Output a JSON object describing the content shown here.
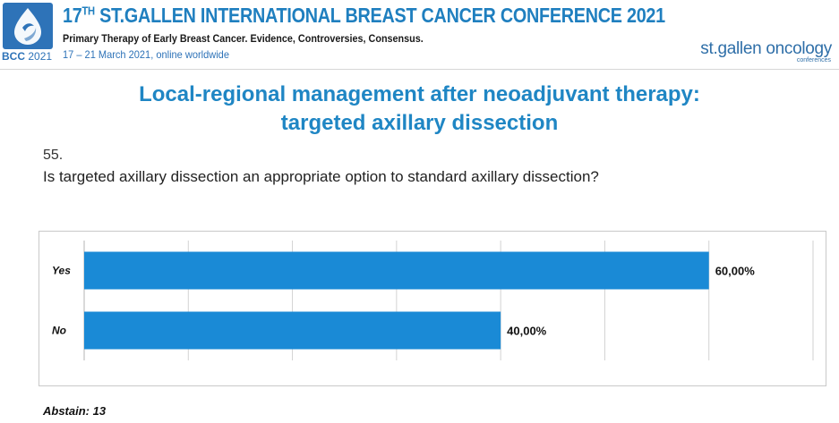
{
  "header": {
    "logo_abbr": "BCC",
    "logo_year": "2021",
    "conference_number": "17",
    "conference_ordinal": "TH",
    "conference_title": "ST.GALLEN INTERNATIONAL BREAST CANCER CONFERENCE 2021",
    "subtitle": "Primary Therapy of Early Breast Cancer. Evidence, Controversies, Consensus.",
    "dates": "17 – 21 March 2021, online worldwide",
    "brand": "st.gallen oncology",
    "brand_sub": "conferences",
    "accent_color": "#1f7fbf"
  },
  "slide": {
    "title_line1": "Local-regional management after neoadjuvant therapy:",
    "title_line2": "targeted axillary dissection",
    "question_number": "55.",
    "question_text": "Is targeted axillary dissection an appropriate option to standard axillary dissection?"
  },
  "chart_data": {
    "type": "bar",
    "orientation": "horizontal",
    "categories": [
      "Yes",
      "No"
    ],
    "values": [
      60,
      40
    ],
    "value_labels": [
      "60,00%",
      "40,00%"
    ],
    "xlim": [
      0,
      70
    ],
    "grid": true,
    "bar_color": "#1a8ad6"
  },
  "footer": {
    "abstain": "Abstain: 13"
  }
}
